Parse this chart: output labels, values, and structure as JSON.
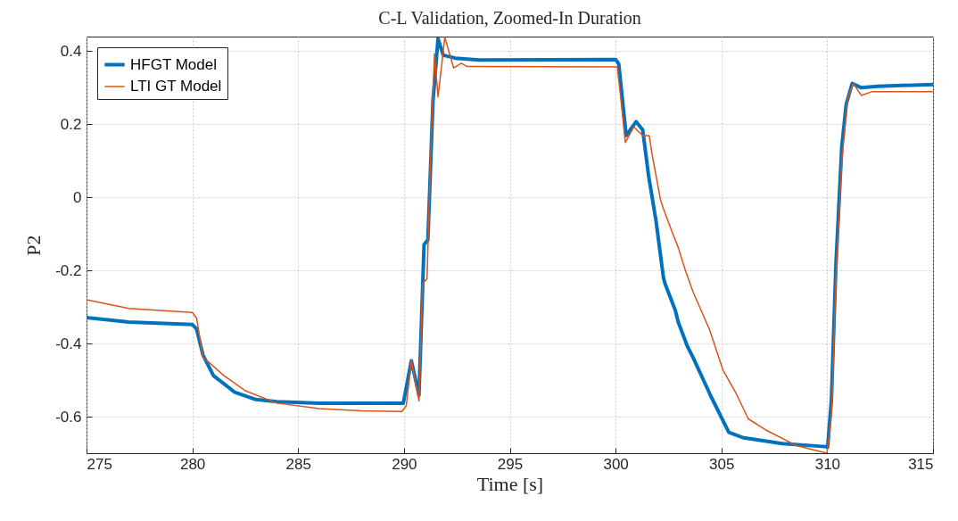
{
  "chart_data": {
    "type": "line",
    "title": "C-L Validation, Zoomed-In Duration",
    "xlabel": "Time [s]",
    "ylabel": "P2",
    "xlim": [
      275,
      315
    ],
    "xticks": [
      275,
      280,
      285,
      290,
      295,
      300,
      305,
      310,
      315
    ],
    "ylim": [
      -0.7,
      0.44
    ],
    "yticks": [
      -0.6,
      -0.4,
      -0.2,
      0,
      0.2,
      0.4
    ],
    "grid": true,
    "legend": "top left",
    "line_style": "solid",
    "marker": "none",
    "series": [
      {
        "name": "HFGT Model",
        "color": "#0072bd",
        "x": [
          275,
          277,
          280,
          280.2,
          280.5,
          281,
          282,
          283,
          284,
          286,
          288,
          289.97,
          290.35,
          290.71,
          290.95,
          291.13,
          291.37,
          291.61,
          291.86,
          292.42,
          293.55,
          300.01,
          300.15,
          300.5,
          300.97,
          301.28,
          301.56,
          301.91,
          302.26,
          302.33,
          302.82,
          302.96,
          303.39,
          303.67,
          304.51,
          305.35,
          306.06,
          307.88,
          309.92,
          310.02,
          310.2,
          310.41,
          310.69,
          310.9,
          311.18,
          311.61,
          312.38,
          315
        ],
        "values": [
          -0.329,
          -0.341,
          -0.348,
          -0.36,
          -0.431,
          -0.488,
          -0.533,
          -0.553,
          -0.559,
          -0.563,
          -0.563,
          -0.563,
          -0.447,
          -0.541,
          -0.129,
          -0.117,
          0.263,
          0.434,
          0.389,
          0.381,
          0.376,
          0.377,
          0.365,
          0.169,
          0.207,
          0.185,
          0.059,
          -0.064,
          -0.219,
          -0.235,
          -0.309,
          -0.341,
          -0.407,
          -0.439,
          -0.545,
          -0.643,
          -0.658,
          -0.674,
          -0.682,
          -0.684,
          -0.553,
          -0.186,
          0.14,
          0.255,
          0.312,
          0.3,
          0.304,
          0.309
        ]
      },
      {
        "name": "LTI GT Model",
        "color": "#d95319",
        "x": [
          275,
          277,
          280,
          280.2,
          280.5,
          281.5,
          282.5,
          284,
          286,
          288,
          289.9,
          290.11,
          290.35,
          290.71,
          290.88,
          291.09,
          291.23,
          291.44,
          291.61,
          291.93,
          292.35,
          292.71,
          292.99,
          300.08,
          300.26,
          300.46,
          300.86,
          301.28,
          301.59,
          301.73,
          302.12,
          302.26,
          302.68,
          302.96,
          303.31,
          303.67,
          304.44,
          305.07,
          305.7,
          306.27,
          307.18,
          308.58,
          309.99,
          310.2,
          310.41,
          310.69,
          310.97,
          311.23,
          311.61,
          312.1,
          315
        ],
        "values": [
          -0.28,
          -0.304,
          -0.315,
          -0.33,
          -0.437,
          -0.488,
          -0.529,
          -0.563,
          -0.578,
          -0.584,
          -0.586,
          -0.57,
          -0.447,
          -0.557,
          -0.235,
          -0.223,
          0.059,
          0.393,
          0.275,
          0.438,
          0.354,
          0.367,
          0.358,
          0.357,
          0.263,
          0.15,
          0.193,
          0.169,
          0.169,
          0.116,
          -0.006,
          -0.031,
          -0.096,
          -0.137,
          -0.202,
          -0.26,
          -0.362,
          -0.472,
          -0.537,
          -0.606,
          -0.639,
          -0.68,
          -0.7,
          -0.594,
          -0.227,
          0.1,
          0.271,
          0.312,
          0.279,
          0.289,
          0.289
        ]
      }
    ]
  }
}
